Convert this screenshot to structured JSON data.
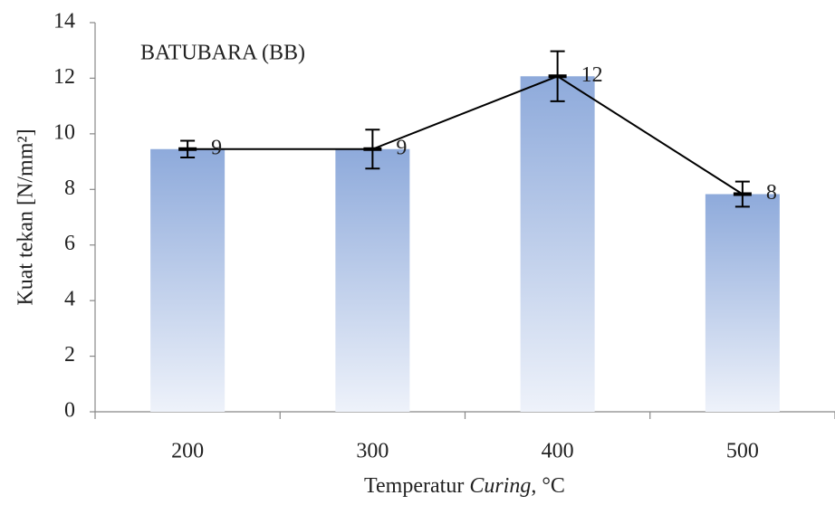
{
  "chart_data": {
    "type": "bar",
    "annotation": "BATUBARA (BB)",
    "xlabel": [
      "Temperatur",
      "Curing",
      ", °C"
    ],
    "ylabel": "Kuat tekan [N/mm²]",
    "categories": [
      "200",
      "300",
      "400",
      "500"
    ],
    "values": [
      9.45,
      9.45,
      12.07,
      7.83
    ],
    "errors": [
      0.3,
      0.7,
      0.9,
      0.45
    ],
    "value_labels": [
      "9",
      "9",
      "12",
      "8"
    ],
    "ylim": [
      0,
      14
    ],
    "yticks": [
      0,
      2,
      4,
      6,
      8,
      10,
      12,
      14
    ],
    "grid": false,
    "color": "#8eaadb",
    "line": true,
    "line_color": "#000000"
  }
}
